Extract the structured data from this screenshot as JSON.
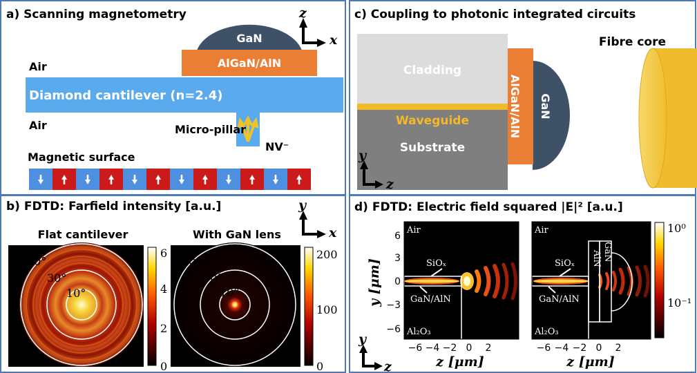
{
  "panels": {
    "a": {
      "title": "a) Scanning magnetometry",
      "labels": {
        "gan": "GaN",
        "algan": "AlGaN/AlN",
        "air_top": "Air",
        "cantilever": "Diamond cantilever (n=2.4)",
        "air_bottom": "Air",
        "micropillar": "Micro-pillar",
        "nv": "NV⁻",
        "magnetic_surface": "Magnetic surface",
        "axis_z": "z",
        "axis_x": "x"
      },
      "domains": [
        "down",
        "up",
        "down",
        "up",
        "down",
        "up",
        "down",
        "up",
        "down",
        "up",
        "down",
        "up"
      ],
      "colors": {
        "blue": "#4e8fe0",
        "red": "#cc1a1a",
        "orange": "#ea7e35",
        "gan": "#3e5167",
        "cantilever": "#5aabee"
      }
    },
    "b": {
      "title": "b) FDTD: Farfield intensity [a.u.]",
      "axis_y": "y",
      "axis_x": "x",
      "plots": [
        {
          "title": "Flat cantilever",
          "angles": [
            "70°",
            "30°",
            "10°"
          ],
          "colorbar_ticks": [
            "6",
            "4",
            "2",
            "0"
          ],
          "colorbar_range": [
            0,
            6
          ]
        },
        {
          "title": "With GaN lens",
          "angles": [
            "70°",
            "30°",
            "10°"
          ],
          "colorbar_ticks": [
            "200",
            "100",
            "0"
          ],
          "colorbar_range": [
            0,
            220
          ]
        }
      ]
    },
    "c": {
      "title": "c) Coupling to photonic integrated circuits",
      "labels": {
        "cladding": "Cladding",
        "waveguide": "Waveguide",
        "substrate": "Substrate",
        "algan": "AlGaN/AlN",
        "gan": "GaN",
        "fibre": "Fibre core",
        "axis_y": "y",
        "axis_z": "z"
      },
      "colors": {
        "cladding": "#dcdcdc",
        "waveguide": "#f2b928",
        "substrate": "#7f7f7f",
        "fibre": "#f3c33c"
      }
    },
    "d": {
      "title": "d) FDTD: Electric field squared |E|² [a.u.]",
      "ylabel": "y [μm]",
      "xlabel": "z [μm]",
      "y_ticks": [
        "6",
        "3",
        "0",
        "−3",
        "−6"
      ],
      "x_ticks": [
        "−6",
        "−4",
        "−2",
        "0",
        "2"
      ],
      "colorbar_ticks": [
        "10⁰",
        "10⁻¹"
      ],
      "plots": [
        {
          "air": "Air",
          "sio": "SiOₓ",
          "gan": "GaN/AlN",
          "sub": "Al₂O₃"
        },
        {
          "air": "Air",
          "sio": "SiOₓ",
          "gan": "GaN/AlN",
          "sub": "Al₂O₃",
          "lens_gan": "GaN",
          "lens_aln": "AlN"
        }
      ],
      "axis_y": "y",
      "axis_z": "z"
    }
  }
}
